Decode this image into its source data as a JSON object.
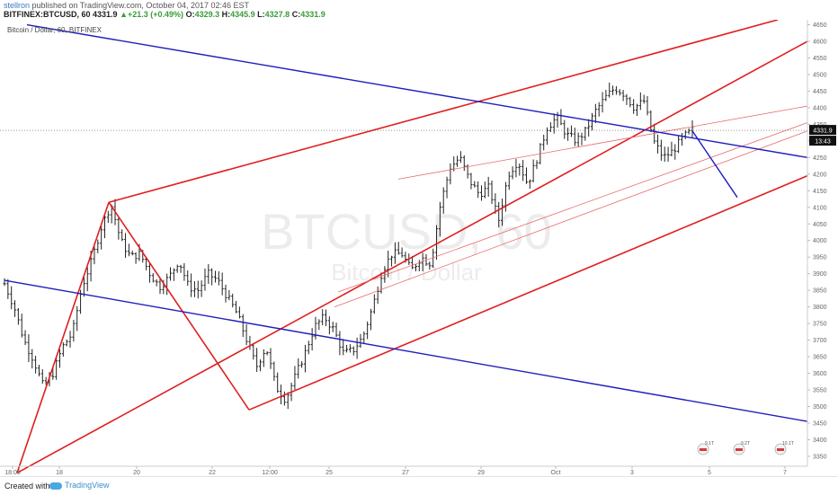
{
  "header": {
    "user": "stellron",
    "published": " published on TradingView.com, October 04, 2017 02:46 EST",
    "symbol": "BITFINEX:BTCUSD, 60",
    "last": "4331.9",
    "change_arrow": "▲",
    "change": "+21.3 (+0.49%)",
    "o_label": "O:",
    "o_value": "4329.3",
    "h_label": "H:",
    "h_value": "4345.9",
    "l_label": "L:",
    "l_value": "4327.8",
    "c_label": "C:",
    "c_value": "4331.9"
  },
  "footer": {
    "created_with": "Created with",
    "brand": "TradingView"
  },
  "colors": {
    "bar": "#222222",
    "pitchfork": "#e01e1e",
    "trend": "#1e1ebd",
    "price_tag": "#111111",
    "grid_dash": "#555555"
  },
  "chart_data": {
    "type": "bar",
    "title": "Bitcoin / Dollar, 60, BITFINEX",
    "watermark_symbol": "BTCUSD, 60",
    "watermark_name": "Bitcoin / Dollar",
    "x_tick_labels": [
      "18:00",
      "18",
      "20",
      "22",
      "12:00",
      "25",
      "27",
      "29",
      "Oct",
      "3",
      "5",
      "7"
    ],
    "y_ticks": [
      3350,
      3400,
      3450,
      3500,
      3550,
      3600,
      3650,
      3700,
      3750,
      3800,
      3850,
      3900,
      3950,
      4000,
      4050,
      4100,
      4150,
      4200,
      4250,
      4300,
      4350,
      4400,
      4450,
      4500,
      4550,
      4600,
      4650
    ],
    "ylim": [
      3320,
      4665
    ],
    "last_price": "4331.9",
    "countdown": "13:43",
    "event_markers": [
      "9.1T",
      "9.2T",
      "10.1T"
    ],
    "price_path": [
      [
        0,
        3870
      ],
      [
        4,
        3800
      ],
      [
        8,
        3700
      ],
      [
        12,
        3640
      ],
      [
        16,
        3560
      ],
      [
        20,
        3600
      ],
      [
        24,
        3680
      ],
      [
        28,
        3720
      ],
      [
        32,
        3860
      ],
      [
        36,
        3940
      ],
      [
        40,
        4040
      ],
      [
        44,
        4110
      ],
      [
        48,
        4000
      ],
      [
        52,
        3950
      ],
      [
        56,
        3960
      ],
      [
        60,
        3900
      ],
      [
        64,
        3860
      ],
      [
        68,
        3890
      ],
      [
        72,
        3940
      ],
      [
        76,
        3860
      ],
      [
        80,
        3850
      ],
      [
        84,
        3900
      ],
      [
        88,
        3880
      ],
      [
        92,
        3830
      ],
      [
        96,
        3780
      ],
      [
        100,
        3700
      ],
      [
        104,
        3620
      ],
      [
        108,
        3680
      ],
      [
        112,
        3560
      ],
      [
        116,
        3520
      ],
      [
        120,
        3590
      ],
      [
        124,
        3660
      ],
      [
        128,
        3740
      ],
      [
        132,
        3770
      ],
      [
        136,
        3730
      ],
      [
        140,
        3660
      ],
      [
        144,
        3670
      ],
      [
        148,
        3710
      ],
      [
        152,
        3800
      ],
      [
        156,
        3910
      ],
      [
        160,
        3960
      ],
      [
        164,
        3960
      ],
      [
        168,
        3910
      ],
      [
        172,
        3950
      ],
      [
        176,
        3930
      ],
      [
        180,
        4110
      ],
      [
        184,
        4220
      ],
      [
        188,
        4250
      ],
      [
        192,
        4180
      ],
      [
        196,
        4140
      ],
      [
        200,
        4160
      ],
      [
        204,
        4060
      ],
      [
        208,
        4200
      ],
      [
        212,
        4240
      ],
      [
        216,
        4170
      ],
      [
        220,
        4250
      ],
      [
        224,
        4340
      ],
      [
        228,
        4370
      ],
      [
        232,
        4320
      ],
      [
        236,
        4300
      ],
      [
        240,
        4330
      ],
      [
        244,
        4390
      ],
      [
        248,
        4430
      ],
      [
        252,
        4460
      ],
      [
        256,
        4440
      ],
      [
        260,
        4400
      ],
      [
        264,
        4420
      ],
      [
        268,
        4300
      ],
      [
        272,
        4250
      ],
      [
        276,
        4270
      ],
      [
        280,
        4310
      ],
      [
        284,
        4332
      ]
    ],
    "drawings": {
      "pitchfork": {
        "pivot": [
          19,
          3300
        ],
        "p1": [
          121,
          4115
        ],
        "p2": [
          277,
          3490
        ],
        "median_end": [
          898,
          4600
        ],
        "upper_end": [
          865,
          4665
        ],
        "lower_end": [
          898,
          4195
        ]
      },
      "inner_lines": [
        {
          "start": [
            443,
            4185
          ],
          "end": [
            898,
            4405
          ]
        },
        {
          "start": [
            376,
            3845
          ],
          "end": [
            898,
            4355
          ]
        },
        {
          "start": [
            372,
            3800
          ],
          "end": [
            898,
            4330
          ]
        }
      ],
      "trendlines": [
        {
          "start": [
            30,
            4650
          ],
          "end": [
            898,
            4250
          ]
        },
        {
          "start": [
            5,
            3880
          ],
          "end": [
            898,
            3455
          ]
        },
        {
          "start": [
            770,
            4330
          ],
          "end": [
            820,
            4130
          ]
        }
      ]
    }
  }
}
